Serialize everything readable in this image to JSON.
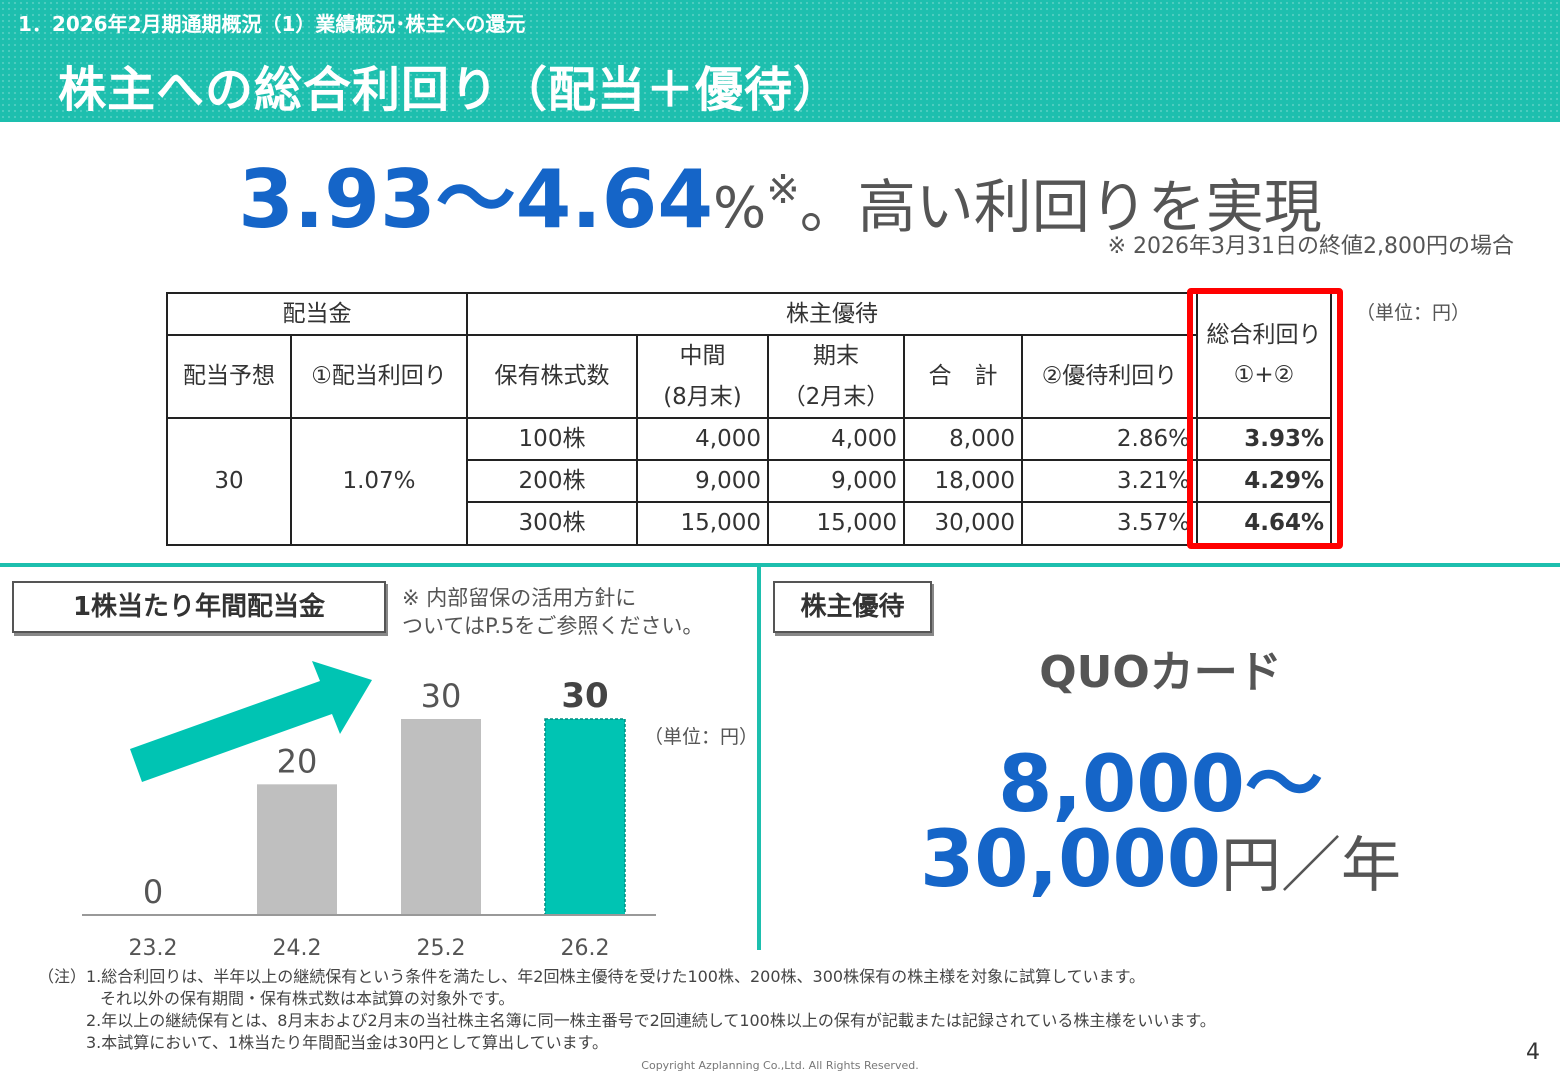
{
  "header": {
    "section": "1．2026年2月期通期概況（1）業績概況･株主への還元",
    "title": "株主への総合利回り（配当＋優待）"
  },
  "headline": {
    "range": "3.93～4.64",
    "percent": "%",
    "mark": "※",
    "text": "。高い利回りを実現",
    "note": "※ 2026年3月31日の終値2,800円の場合"
  },
  "yield_table": {
    "unit": "（単位：円）",
    "group_dividend": "配当金",
    "group_benefit": "株主優待",
    "total_yield_label": "総合利回り",
    "total_yield_formula": "①+②",
    "col_forecast": "配当予想",
    "col_div_yield": "①配当利回り",
    "col_shares": "保有株式数",
    "col_interim_l1": "中間",
    "col_interim_l2": "(8月末)",
    "col_yearend_l1": "期末",
    "col_yearend_l2": "（2月末）",
    "col_total": "合　計",
    "col_benefit_yield": "②優待利回り",
    "forecast": "30",
    "dividend_yield": "1.07%",
    "rows": [
      {
        "shares": "100株",
        "interim": "4,000",
        "yearend": "4,000",
        "total": "8,000",
        "benefit_yield": "2.86%",
        "total_yield": "3.93%"
      },
      {
        "shares": "200株",
        "interim": "9,000",
        "yearend": "9,000",
        "total": "18,000",
        "benefit_yield": "3.21%",
        "total_yield": "4.29%"
      },
      {
        "shares": "300株",
        "interim": "15,000",
        "yearend": "15,000",
        "total": "30,000",
        "benefit_yield": "3.57%",
        "total_yield": "4.64%"
      }
    ]
  },
  "dividend_section": {
    "label": "1株当たり年間配当金",
    "note_l1": "※ 内部留保の活用方針に",
    "note_l2": "ついてはP.5をご参照ください。",
    "unit": "（単位：円）"
  },
  "chart_data": {
    "type": "bar",
    "categories": [
      "23.2",
      "24.2",
      "25.2",
      "26.2"
    ],
    "values": [
      0,
      20,
      30,
      30
    ],
    "data_labels": [
      "0",
      "20",
      "30",
      "30"
    ],
    "ylim": [
      0,
      30
    ],
    "colors": [
      "#bfbfbf",
      "#bfbfbf",
      "#bfbfbf",
      "#00c4b3"
    ],
    "grid": false,
    "title": "",
    "xlabel": "",
    "ylabel": ""
  },
  "benefit_section": {
    "label": "株主優待",
    "item": "QUOカード",
    "amount_l1": "8,000～",
    "amount_l2": "30,000",
    "amount_unit": "円／年"
  },
  "notes": {
    "l1": "（注）1.総合利回りは、半年以上の継続保有という条件を満たし、年2回株主優待を受けた100株、200株、300株保有の株主様を対象に試算しています。",
    "l2": "それ以外の保有期間・保有株式数は本試算の対象外です。",
    "l3": "2.年以上の継続保有とは、8月末および2月末の当社株主名簿に同一株主番号で2回連続して100株以上の保有が記載または記録されている株主様をいいます。",
    "l4": "3.本試算において、1株当たり年間配当金は30円として算出しています。"
  },
  "footer": {
    "copyright": "Copyright Azplanning Co.,Ltd. All Rights Reserved.",
    "page": "4"
  },
  "colors": {
    "accent": "#1dbfae",
    "highlight_blue": "#1565c8",
    "box_red": "#ff0000"
  }
}
